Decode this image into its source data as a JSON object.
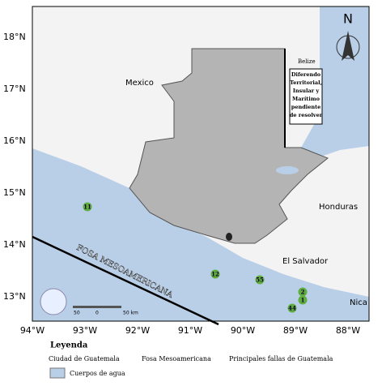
{
  "map": {
    "lat_labels": [
      "18°N",
      "17°N",
      "16°N",
      "15°N",
      "14°N",
      "13°N"
    ],
    "lon_labels": [
      "94°W",
      "93°W",
      "92°W",
      "91°W",
      "90°W",
      "89°W",
      "88°W"
    ],
    "places": {
      "mexico": "Mexico",
      "belize": "Belize",
      "dispute": [
        "Diferendo",
        "Territorial,",
        "Insular y",
        "Marítimo",
        "pendiente",
        "de resolver"
      ],
      "honduras": "Honduras",
      "el_salvador": "El Salvador",
      "nicaragua": "Nica"
    },
    "trench": "FOSA MESOAMERICANA",
    "north": "N",
    "scale": [
      "50",
      "0",
      "50 km"
    ],
    "markers": [
      "11",
      "12",
      "55",
      "2",
      "1",
      "44"
    ]
  },
  "legend": {
    "title": "Leyenda",
    "items": [
      "Ciudad de Guatemala",
      "Fosa Mesoamericana",
      "Principales fallas de Guatemala",
      "Cuerpos de agua"
    ]
  }
}
